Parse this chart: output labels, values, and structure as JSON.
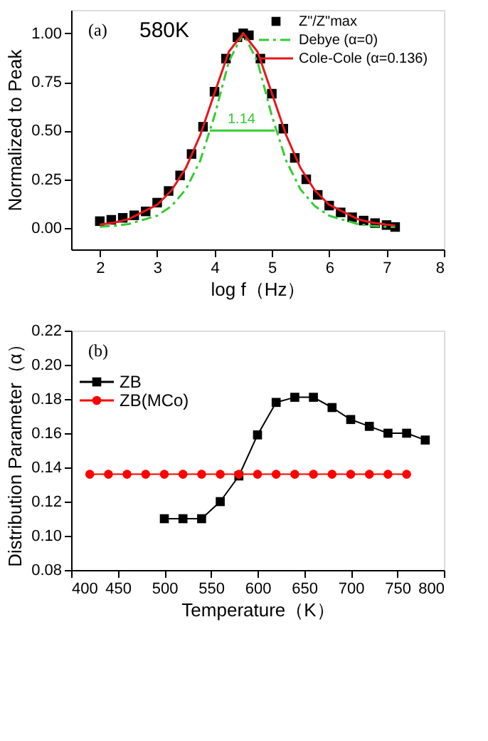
{
  "chart_data": [
    {
      "type": "scatter",
      "xlabel": "log f（Hz）",
      "ylabel": "Normalized to Peak",
      "xlim": [
        1.5,
        8
      ],
      "ylim": [
        -0.11,
        1.12
      ],
      "xticks": [
        2,
        3,
        4,
        5,
        6,
        7,
        8
      ],
      "yticks": [
        {
          "value": 0,
          "label": "0.00"
        },
        {
          "value": 0.25,
          "label": "0.25"
        },
        {
          "value": 0.5,
          "label": "0.50"
        },
        {
          "value": 0.75,
          "label": "0.75"
        },
        {
          "value": 1,
          "label": "1.00"
        }
      ],
      "grid": false,
      "legend": "top right",
      "annotations": [
        "(a)",
        "580K",
        {
          "text": "1.14",
          "x": 4.47,
          "y": 0.5
        }
      ],
      "series": [
        {
          "name": "Z\"/Z\"max",
          "type": "scatter",
          "marker": "square",
          "color": "#000000",
          "x": [
            2.0,
            2.2,
            2.4,
            2.6,
            2.8,
            3.0,
            3.2,
            3.4,
            3.6,
            3.8,
            4.0,
            4.2,
            4.4,
            4.5,
            4.6,
            4.8,
            5.0,
            5.2,
            5.4,
            5.6,
            5.8,
            6.0,
            6.2,
            6.4,
            6.6,
            6.8,
            7.0,
            7.15
          ],
          "values": [
            0.035,
            0.042,
            0.052,
            0.065,
            0.085,
            0.13,
            0.19,
            0.27,
            0.38,
            0.52,
            0.7,
            0.87,
            0.98,
            1.0,
            0.99,
            0.87,
            0.69,
            0.51,
            0.36,
            0.25,
            0.17,
            0.115,
            0.08,
            0.055,
            0.038,
            0.025,
            0.015,
            0.005
          ]
        },
        {
          "name": "Debye (α=0)",
          "type": "line",
          "line_style": "dashed",
          "color": "#33cc33",
          "x": [
            2.0,
            2.25,
            2.5,
            3.0,
            3.25,
            3.5,
            3.75,
            4.0,
            4.25,
            4.5,
            4.75,
            5.0,
            5.25,
            5.5,
            5.75,
            6.0,
            6.5,
            6.75,
            7.0,
            7.15
          ],
          "values": [
            0.006,
            0.011,
            0.02,
            0.063,
            0.112,
            0.198,
            0.345,
            0.576,
            0.855,
            1.0,
            0.855,
            0.576,
            0.345,
            0.198,
            0.112,
            0.063,
            0.02,
            0.011,
            0.006,
            0.005
          ]
        },
        {
          "name": "Cole-Cole (α=0.136)",
          "type": "line",
          "line_style": "solid",
          "color": "#e8161b",
          "x": [
            2.0,
            2.25,
            2.5,
            3.0,
            3.25,
            3.5,
            3.75,
            4.0,
            4.25,
            4.5,
            4.75,
            5.0,
            5.25,
            5.5,
            5.75,
            6.0,
            6.5,
            6.75,
            7.0,
            7.15
          ],
          "values": [
            0.017,
            0.027,
            0.045,
            0.119,
            0.193,
            0.308,
            0.476,
            0.693,
            0.906,
            1.0,
            0.906,
            0.693,
            0.476,
            0.308,
            0.193,
            0.119,
            0.045,
            0.027,
            0.017,
            0.013
          ]
        },
        {
          "type": "line",
          "line_style": "solid",
          "color": "#33cc33",
          "x": [
            3.92,
            5.05
          ],
          "values": [
            0.5,
            0.5
          ]
        }
      ]
    },
    {
      "type": "line",
      "xlabel": "Temperature（K）",
      "ylabel": "Distribution Parameter（α）",
      "xlim": [
        400,
        800
      ],
      "ylim": [
        0.08,
        0.22
      ],
      "xticks": [
        400,
        450,
        500,
        550,
        600,
        650,
        700,
        750,
        800
      ],
      "yticks": [
        {
          "value": 0.08,
          "label": "0.08"
        },
        {
          "value": 0.1,
          "label": "0.10"
        },
        {
          "value": 0.12,
          "label": "0.12"
        },
        {
          "value": 0.14,
          "label": "0.14"
        },
        {
          "value": 0.16,
          "label": "0.16"
        },
        {
          "value": 0.18,
          "label": "0.18"
        },
        {
          "value": 0.2,
          "label": "0.20"
        },
        {
          "value": 0.22,
          "label": "0.22"
        }
      ],
      "grid": false,
      "legend": "top left",
      "annotations": [
        "(b)"
      ],
      "series": [
        {
          "name": "ZB",
          "marker": "square",
          "color": "#000000",
          "x": [
            500,
            520,
            540,
            560,
            580,
            600,
            620,
            640,
            660,
            680,
            700,
            720,
            740,
            760,
            780
          ],
          "values": [
            0.11,
            0.11,
            0.11,
            0.12,
            0.135,
            0.159,
            0.178,
            0.181,
            0.181,
            0.175,
            0.168,
            0.164,
            0.16,
            0.16,
            0.156
          ]
        },
        {
          "name": "ZB(MCo)",
          "marker": "circle",
          "color": "#ff0000",
          "x": [
            420,
            440,
            460,
            480,
            500,
            520,
            540,
            560,
            580,
            600,
            620,
            640,
            660,
            680,
            700,
            720,
            740,
            760
          ],
          "values": [
            0.136,
            0.136,
            0.136,
            0.136,
            0.136,
            0.136,
            0.136,
            0.136,
            0.136,
            0.136,
            0.136,
            0.136,
            0.136,
            0.136,
            0.136,
            0.136,
            0.136,
            0.136
          ]
        }
      ]
    }
  ]
}
